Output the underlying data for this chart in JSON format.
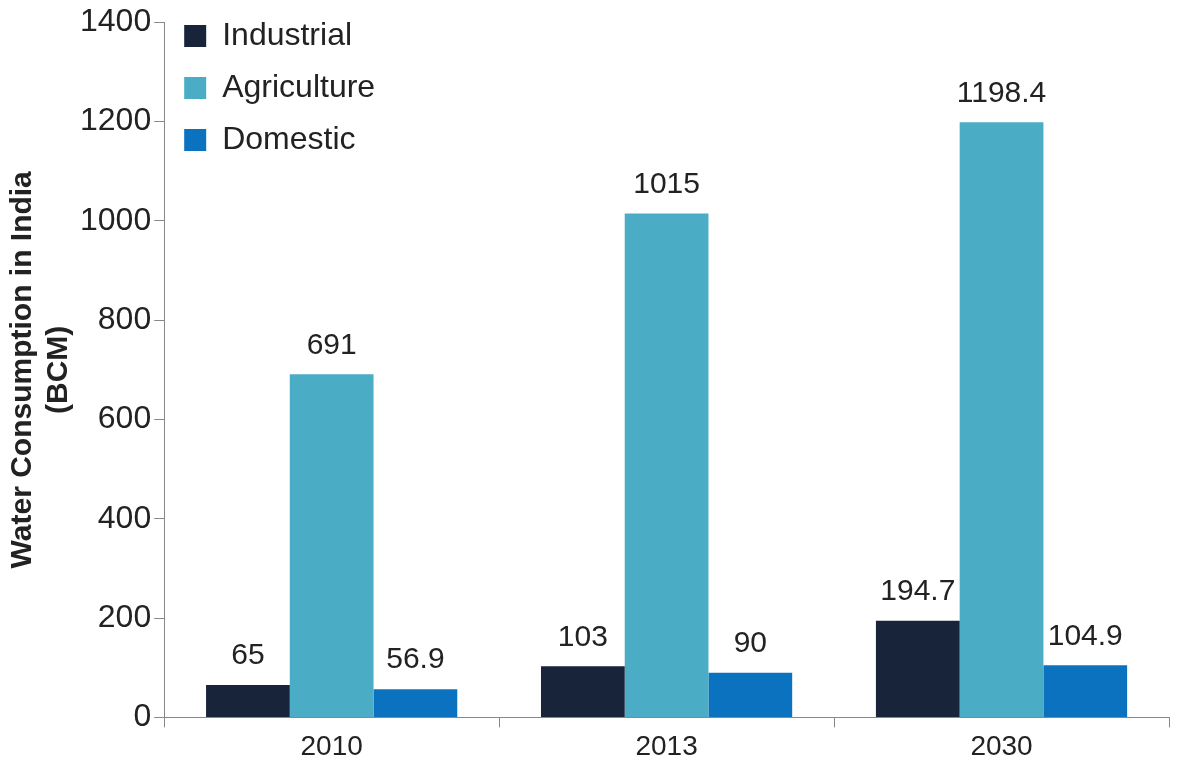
{
  "chart_data": {
    "type": "bar",
    "ylabel": "Water Consumption in India\n(BCM)",
    "categories": [
      "2010",
      "2013",
      "2030"
    ],
    "series": [
      {
        "name": "Industrial",
        "color": "#17243a",
        "values": [
          65,
          103,
          194.7
        ]
      },
      {
        "name": "Agriculture",
        "color": "#4bacc6",
        "values": [
          691,
          1015,
          1198.4
        ]
      },
      {
        "name": "Domestic",
        "color": "#0b72c0",
        "values": [
          56.9,
          90,
          104.9
        ]
      }
    ],
    "ylim": [
      0,
      1400
    ],
    "yticks": [
      0,
      200,
      400,
      600,
      800,
      1000,
      1200,
      1400
    ],
    "grid": false,
    "legend": "top left",
    "data_labels": true
  }
}
